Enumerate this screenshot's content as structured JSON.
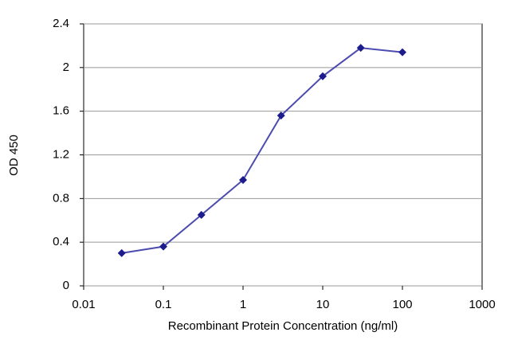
{
  "chart_data": {
    "type": "line",
    "x_label": "Recombinant Protein Concentration (ng/ml)",
    "y_label": "OD 450",
    "xscale": "log",
    "x": [
      0.03,
      0.1,
      0.3,
      1,
      3,
      10,
      30,
      100
    ],
    "series": [
      {
        "name": "OD 450",
        "color": "#4b4bb0",
        "marker_color": "#1c1c8c",
        "values": [
          0.3,
          0.36,
          0.65,
          0.97,
          1.56,
          1.92,
          2.18,
          2.14
        ]
      }
    ],
    "xlim": [
      0.01,
      1000
    ],
    "xticks": [
      0.01,
      0.1,
      1,
      10,
      100,
      1000
    ],
    "ylim": [
      0,
      2.4
    ],
    "yticks": [
      0,
      0.4,
      0.8,
      1.2,
      1.6,
      2,
      2.4
    ],
    "grid": true
  }
}
